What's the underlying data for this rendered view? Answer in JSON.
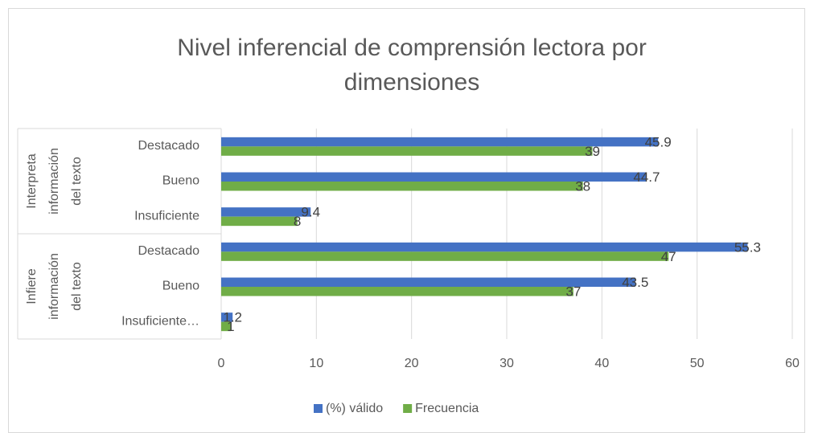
{
  "chart_data": {
    "type": "bar",
    "orientation": "horizontal",
    "title": "Nivel inferencial de comprensión lectora por dimensiones",
    "groups": [
      {
        "name_lines": [
          "Interpreta",
          "información",
          "del texto"
        ],
        "categories": [
          "Destacado",
          "Bueno",
          "Insuficiente"
        ]
      },
      {
        "name_lines": [
          "Infiere",
          "información",
          "del texto"
        ],
        "categories": [
          "Destacado",
          "Bueno",
          "Insuficiente…"
        ]
      }
    ],
    "series": [
      {
        "name": "(%) válido",
        "color": "#4472c4",
        "values": [
          45.9,
          44.7,
          9.4,
          55.3,
          43.5,
          1.2
        ]
      },
      {
        "name": "Frecuencia",
        "color": "#70ad47",
        "values": [
          39,
          38,
          8,
          47,
          37,
          1
        ]
      }
    ],
    "xlim": [
      0,
      60
    ],
    "xticks": [
      0,
      10,
      20,
      30,
      40,
      50,
      60
    ],
    "grid": true,
    "legend": "bottom"
  }
}
